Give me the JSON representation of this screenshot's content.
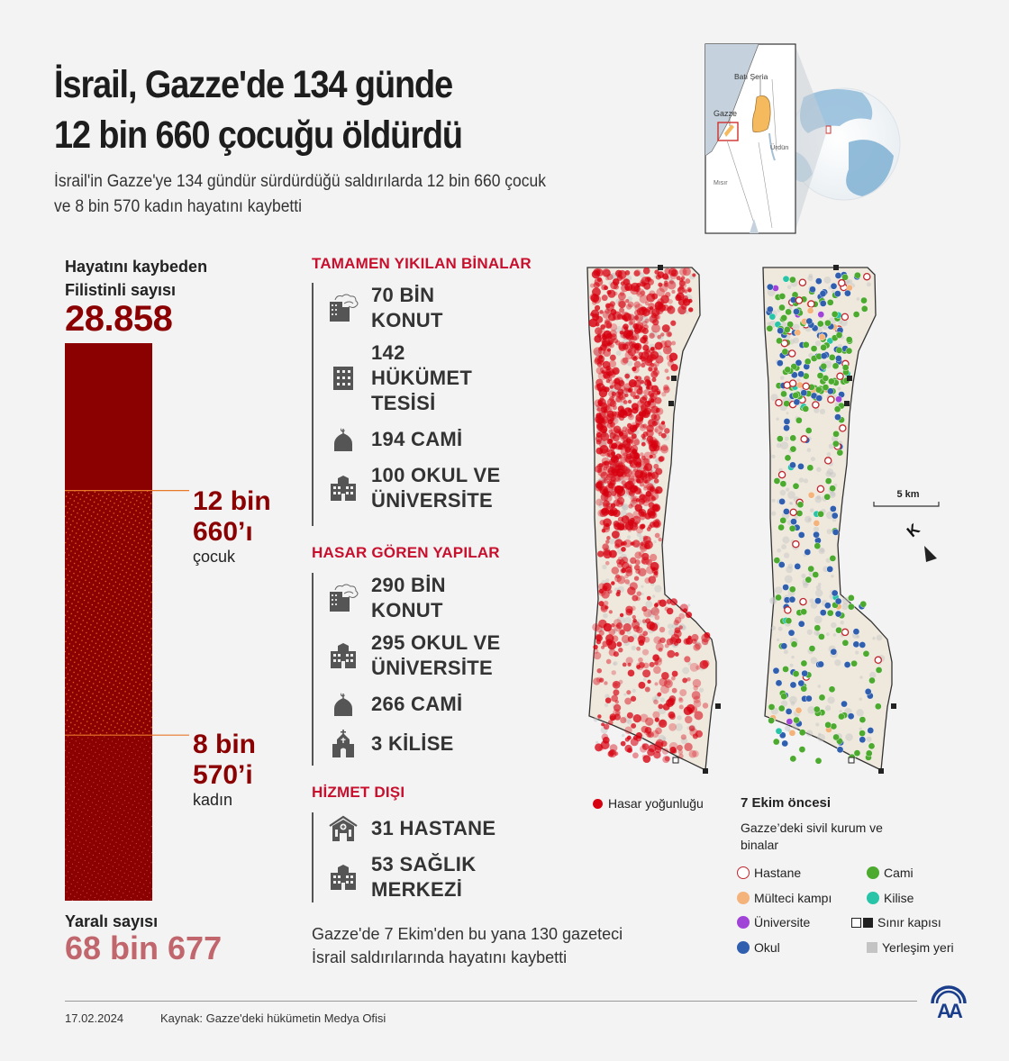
{
  "header": {
    "title_line1": "İsrail, Gazze'de 134 günde",
    "title_line2": "12 bin 660 çocuğu öldürdü",
    "subtitle_line1": "İsrail'in Gazze'ye 134 gündür sürdürdüğü saldırılarda 12 bin 660 çocuk",
    "subtitle_line2": "ve 8 bin 570 kadın hayatını kaybetti"
  },
  "locator_map": {
    "labels": {
      "west_bank": "Batı Şeria",
      "gaza": "Gazze",
      "jordan": "Ürdün",
      "egypt": "Mısır"
    },
    "colors": {
      "west_bank_fill": "#f5b95e",
      "highlight_box": "#d0312d",
      "sea": "#c5d2de",
      "globe": "#7fb0d2"
    }
  },
  "casualties": {
    "deaths_label_line1": "Hayatını kaybeden",
    "deaths_label_line2": "Filistinli sayısı",
    "deaths_value": "28.858",
    "deaths_total": 28858,
    "children_value": 12660,
    "women_value": 8570,
    "children_line1": "12 bin",
    "children_line2": "660’ı",
    "children_word": "çocuk",
    "women_line1": "8 bin",
    "women_line2": "570’i",
    "women_word": "kadın",
    "injured_label": "Yaralı sayısı",
    "injured_value": "68 bin 677",
    "colors": {
      "bar": "#8b0000",
      "pattern": "#e8782a",
      "injured": "#c0666c"
    }
  },
  "sections": [
    {
      "title": "TAMAMEN YIKILAN BİNALAR",
      "items": [
        {
          "icon": "destroyed-building-icon",
          "lines": [
            "70 BİN",
            "KONUT"
          ]
        },
        {
          "icon": "government-building-icon",
          "lines": [
            "142",
            "HÜKÜMET",
            "TESİSİ"
          ]
        },
        {
          "icon": "mosque-icon",
          "lines": [
            "194 CAMİ"
          ]
        },
        {
          "icon": "school-icon",
          "lines": [
            "100 OKUL VE",
            "ÜNİVERSİTE"
          ]
        }
      ]
    },
    {
      "title": "HASAR GÖREN YAPILAR",
      "items": [
        {
          "icon": "destroyed-building-icon",
          "lines": [
            "290 BİN",
            "KONUT"
          ]
        },
        {
          "icon": "school-icon",
          "lines": [
            "295 OKUL VE",
            "ÜNİVERSİTE"
          ]
        },
        {
          "icon": "mosque-icon",
          "lines": [
            "266 CAMİ"
          ]
        },
        {
          "icon": "church-icon",
          "lines": [
            "3 KİLİSE"
          ]
        }
      ]
    },
    {
      "title": "HİZMET DIŞI",
      "items": [
        {
          "icon": "hospital-icon",
          "lines": [
            "31 HASTANE"
          ]
        },
        {
          "icon": "health-center-icon",
          "lines": [
            "53 SAĞLIK",
            "MERKEZİ"
          ]
        }
      ]
    }
  ],
  "journalists": {
    "line1": "Gazze'de 7 Ekim'den bu yana 130 gazeteci",
    "line2": "İsrail saldırılarında hayatını kaybetti"
  },
  "maps": {
    "scale_label": "5 km",
    "north_label": "K",
    "damage_legend": "Hasar yoğunluğu",
    "legend_title": "7 Ekim öncesi",
    "legend_subtitle": "Gazze’deki sivil kurum ve binalar",
    "legend_items": [
      {
        "label": "Hastane",
        "type": "hospital",
        "color": "#c0262d"
      },
      {
        "label": "Mülteci kampı",
        "type": "refugee-camp",
        "color": "#f3b37a"
      },
      {
        "label": "Üniversite",
        "type": "university",
        "color": "#a044d8"
      },
      {
        "label": "Okul",
        "type": "school",
        "color": "#2f5fae"
      },
      {
        "label": "Cami",
        "type": "mosque",
        "color": "#4caa2f"
      },
      {
        "label": "Kilise",
        "type": "church",
        "color": "#27c4a8"
      },
      {
        "label": "Sınır kapısı",
        "type": "border-crossing",
        "color": "#222222"
      },
      {
        "label": "Yerleşim yeri",
        "type": "settlement",
        "color": "#c4c4c4"
      }
    ],
    "damage_color": "#d7000f",
    "land_color": "#efe8dd"
  },
  "footer": {
    "date": "17.02.2024",
    "source": "Kaynak: Gazze'deki hükümetin Medya Ofisi",
    "logo_text": "AA"
  }
}
